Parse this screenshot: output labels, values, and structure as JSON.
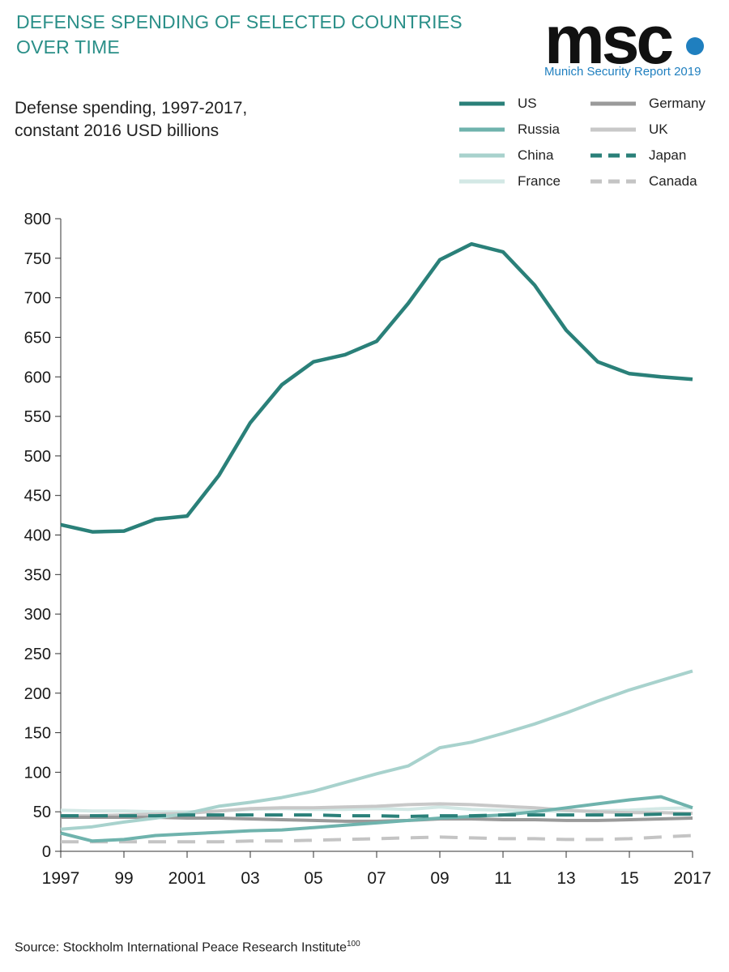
{
  "header": {
    "title": "DEFENSE SPENDING OF SELECTED COUNTRIES OVER TIME"
  },
  "logo": {
    "word": "msc",
    "subtitle": "Munich Security Report 2019"
  },
  "source": {
    "text": "Source: Stockholm International Peace Research Institute",
    "ref": "100"
  },
  "colors": {
    "US": "#2a8079",
    "Russia": "#6fb3ad",
    "China": "#a8d2cd",
    "France": "#d3e8e5",
    "Germany": "#9a9a9a",
    "UK": "#c8c8c8",
    "Japan": "#2a8079",
    "Canada": "#c4c4c4"
  },
  "chart_data": {
    "type": "line",
    "title": "Defense spending, 1997-2017,",
    "subtitle": "constant 2016 USD billions",
    "xlabel": "",
    "ylabel": "",
    "ylim": [
      0,
      800
    ],
    "yticks": [
      0,
      50,
      100,
      150,
      200,
      250,
      300,
      350,
      400,
      450,
      500,
      550,
      600,
      650,
      700,
      750,
      800
    ],
    "x": [
      1997,
      1998,
      1999,
      2000,
      2001,
      2002,
      2003,
      2004,
      2005,
      2006,
      2007,
      2008,
      2009,
      2010,
      2011,
      2012,
      2013,
      2014,
      2015,
      2016,
      2017
    ],
    "xticks": [
      1997,
      1999,
      2001,
      2003,
      2005,
      2007,
      2009,
      2011,
      2013,
      2015,
      2017
    ],
    "xtick_labels": [
      "1997",
      "99",
      "2001",
      "03",
      "05",
      "07",
      "09",
      "11",
      "13",
      "15",
      "2017"
    ],
    "legend_position": "top-right",
    "series": [
      {
        "name": "US",
        "dash": false,
        "values": [
          413,
          404,
          405,
          420,
          424,
          475,
          542,
          590,
          619,
          628,
          645,
          693,
          748,
          768,
          758,
          716,
          659,
          619,
          604,
          600,
          597
        ]
      },
      {
        "name": "Russia",
        "dash": false,
        "values": [
          23,
          13,
          15,
          20,
          22,
          24,
          26,
          27,
          30,
          33,
          36,
          39,
          42,
          44,
          46,
          50,
          55,
          60,
          65,
          69,
          55
        ]
      },
      {
        "name": "China",
        "dash": false,
        "values": [
          28,
          31,
          37,
          42,
          48,
          57,
          62,
          68,
          76,
          87,
          98,
          108,
          131,
          138,
          149,
          161,
          175,
          190,
          204,
          216,
          228
        ]
      },
      {
        "name": "France",
        "dash": false,
        "values": [
          52,
          51,
          51,
          50,
          50,
          51,
          53,
          54,
          53,
          53,
          54,
          53,
          56,
          53,
          52,
          51,
          51,
          51,
          52,
          54,
          55
        ]
      },
      {
        "name": "Germany",
        "dash": false,
        "values": [
          43,
          43,
          43,
          43,
          42,
          42,
          41,
          40,
          39,
          38,
          38,
          39,
          41,
          41,
          40,
          40,
          39,
          39,
          40,
          41,
          42
        ]
      },
      {
        "name": "UK",
        "dash": false,
        "values": [
          45,
          45,
          46,
          47,
          48,
          51,
          54,
          55,
          55,
          56,
          57,
          59,
          60,
          59,
          57,
          55,
          52,
          50,
          49,
          49,
          48
        ]
      },
      {
        "name": "Japan",
        "dash": true,
        "values": [
          45,
          45,
          45,
          45,
          46,
          46,
          46,
          46,
          46,
          45,
          45,
          44,
          45,
          45,
          46,
          46,
          46,
          46,
          46,
          47,
          47
        ]
      },
      {
        "name": "Canada",
        "dash": true,
        "values": [
          12,
          12,
          12,
          12,
          12,
          12,
          13,
          13,
          14,
          15,
          16,
          17,
          18,
          17,
          16,
          16,
          15,
          15,
          16,
          18,
          20
        ]
      }
    ]
  }
}
